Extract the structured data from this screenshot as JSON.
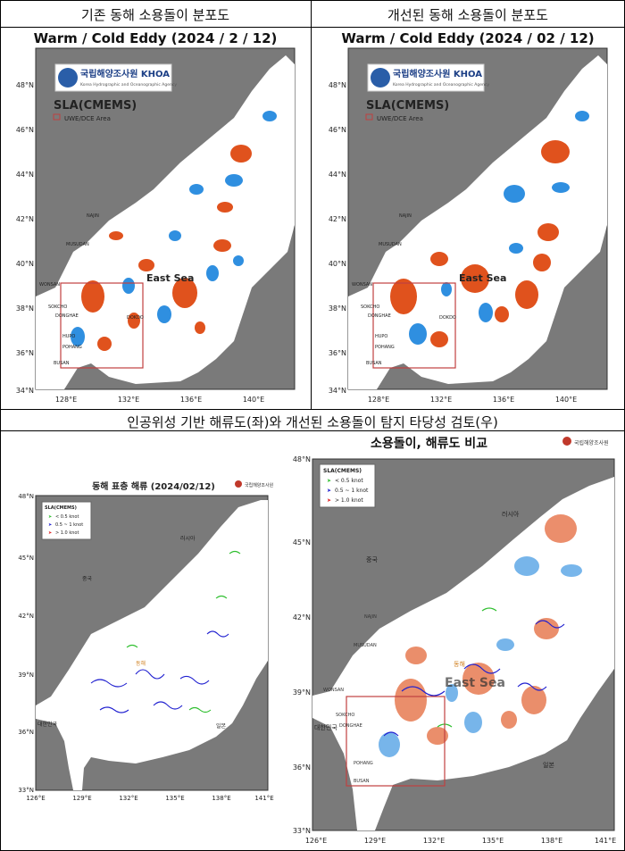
{
  "header": {
    "left_title": "기존 동해 소용돌이 분포도",
    "right_title": "개선된 동해 소용돌이 분포도",
    "bottom_title": "인공위성 기반 해류도(좌)와 개선된 소용돌이 탐지 타당성 검토(우)"
  },
  "top_left_map": {
    "title": "Warm / Cold Eddy (2024 / 2 / 12)",
    "logo_text": "국립해양조사원 KHOA",
    "logo_sub": "Korea Hydrographic and Oceanographic Agency",
    "sla_label": "SLA(CMEMS)",
    "legend": "UWE/DCE Area",
    "sea_label": "East Sea",
    "lat_ticks": [
      "48°N",
      "46°N",
      "44°N",
      "42°N",
      "40°N",
      "38°N",
      "36°N",
      "34°N"
    ],
    "lon_ticks": [
      "128°E",
      "132°E",
      "136°E",
      "140°E"
    ],
    "places": [
      "NAJIN",
      "MUSUDAN",
      "WONSAN",
      "SOKCHO",
      "DONGHAE",
      "HUPO",
      "POHANG",
      "BUSAN",
      "DOKDO"
    ]
  },
  "top_right_map": {
    "title": "Warm / Cold Eddy (2024 / 02 / 12)",
    "logo_text": "국립해양조사원 KHOA",
    "logo_sub": "Korea Hydrographic and Oceanographic Agency",
    "sla_label": "SLA(CMEMS)",
    "legend": "UWE/DCE Area",
    "sea_label": "East Sea",
    "lat_ticks": [
      "48°N",
      "46°N",
      "44°N",
      "42°N",
      "40°N",
      "38°N",
      "36°N",
      "34°N"
    ],
    "lon_ticks": [
      "128°E",
      "132°E",
      "136°E",
      "140°E"
    ],
    "places": [
      "NAJIN",
      "MUSUDAN",
      "WONSAN",
      "SOKCHO",
      "DONGHAE",
      "HUPO",
      "POHANG",
      "BUSAN",
      "DOKDO"
    ]
  },
  "bottom_left_map": {
    "title": "동해 표층 해류 (2024/02/12)",
    "agency": "국립해양조사원",
    "legend_title": "SLA(CMEMS)",
    "legend": [
      "< 0.5 knot",
      "0.5 ~ 1 knot",
      "> 1.0 knot"
    ],
    "lat_ticks": [
      "48°N",
      "45°N",
      "42°N",
      "39°N",
      "36°N",
      "33°N"
    ],
    "lon_ticks": [
      "126°E",
      "129°E",
      "132°E",
      "135°E",
      "138°E",
      "141°E"
    ],
    "country_labels": [
      "러시아",
      "중국",
      "일본",
      "대한민국",
      "동해"
    ]
  },
  "bottom_right_map": {
    "title": "소용돌이, 해류도 비교",
    "agency": "국립해양조사원",
    "legend_title": "SLA(CMEMS)",
    "legend": [
      "< 0.5 knot",
      "0.5 ~ 1 knot",
      "> 1.0 knot"
    ],
    "sea_label": "East Sea",
    "lat_ticks": [
      "48°N",
      "45°N",
      "42°N",
      "39°N",
      "36°N",
      "33°N"
    ],
    "lon_ticks": [
      "126°E",
      "129°E",
      "132°E",
      "135°E",
      "138°E",
      "141°E"
    ],
    "country_labels": [
      "러시아",
      "중국",
      "대한민국",
      "일본",
      "동해"
    ],
    "places": [
      "NAJIN",
      "MUSUDAN",
      "WONSAN",
      "SOKCHO",
      "DONGHAE",
      "POHANG",
      "BUSAN"
    ]
  },
  "colors": {
    "land": "#7a7a7a",
    "sea": "#ffffff",
    "warm_eddy": "#e0521d",
    "cold_eddy": "#2f8fe0",
    "slow_arrow": "#2fbf2f",
    "mid_arrow": "#2020d0",
    "fast_arrow": "#e02020",
    "box": "#c04040"
  }
}
